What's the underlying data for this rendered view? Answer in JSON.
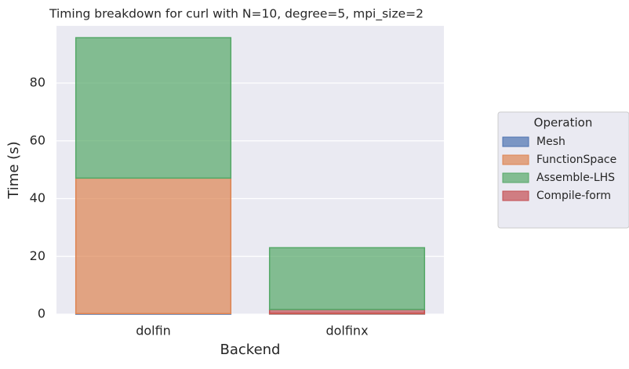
{
  "chart_data": {
    "type": "stacked_bar",
    "title": "Timing breakdown for curl with N=10, degree=5, mpi_size=2",
    "x_label": "Backend",
    "y_label": "Time (s)",
    "categories": [
      "dolfin",
      "dolfinx"
    ],
    "series": [
      {
        "name": "Mesh",
        "color": "#4c72b0",
        "values": [
          0.2,
          0.1
        ]
      },
      {
        "name": "FunctionSpace",
        "color": "#dd8452",
        "values": [
          46.9,
          0.2
        ]
      },
      {
        "name": "Assemble-LHS",
        "color": "#55a868",
        "values": [
          48.6,
          21.4
        ]
      },
      {
        "name": "Compile-form",
        "color": "#c44e52",
        "values": [
          0,
          1.3
        ]
      }
    ],
    "legend_title": "Operation",
    "legend": "right",
    "ylim": [
      0,
      99.8
    ],
    "yticks": [
      0,
      20,
      40,
      60,
      80
    ],
    "grid": true
  }
}
